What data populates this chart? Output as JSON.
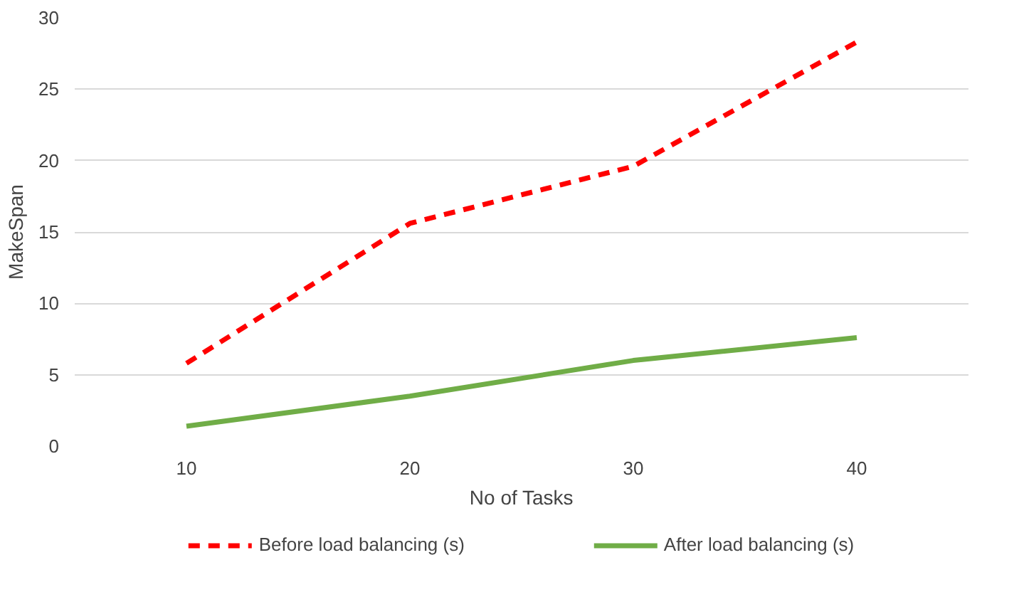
{
  "chart_data": {
    "type": "line",
    "xlabel": "No of Tasks",
    "ylabel": "MakeSpan",
    "categories": [
      "10",
      "20",
      "30",
      "40"
    ],
    "series": [
      {
        "name": "Before load balancing (s)",
        "color": "#ff0000",
        "values": [
          5.8,
          15.6,
          19.6,
          28.3
        ],
        "line_style": "dashed"
      },
      {
        "name": "After load balancing (s)",
        "color": "#70ad47",
        "values": [
          1.4,
          3.5,
          6.0,
          7.6
        ],
        "line_style": "solid"
      }
    ],
    "ylim": [
      0,
      30
    ],
    "yticks": [
      0,
      5,
      10,
      15,
      20,
      25,
      30
    ],
    "grid": "y",
    "legend": "bottom",
    "marker": "none"
  }
}
